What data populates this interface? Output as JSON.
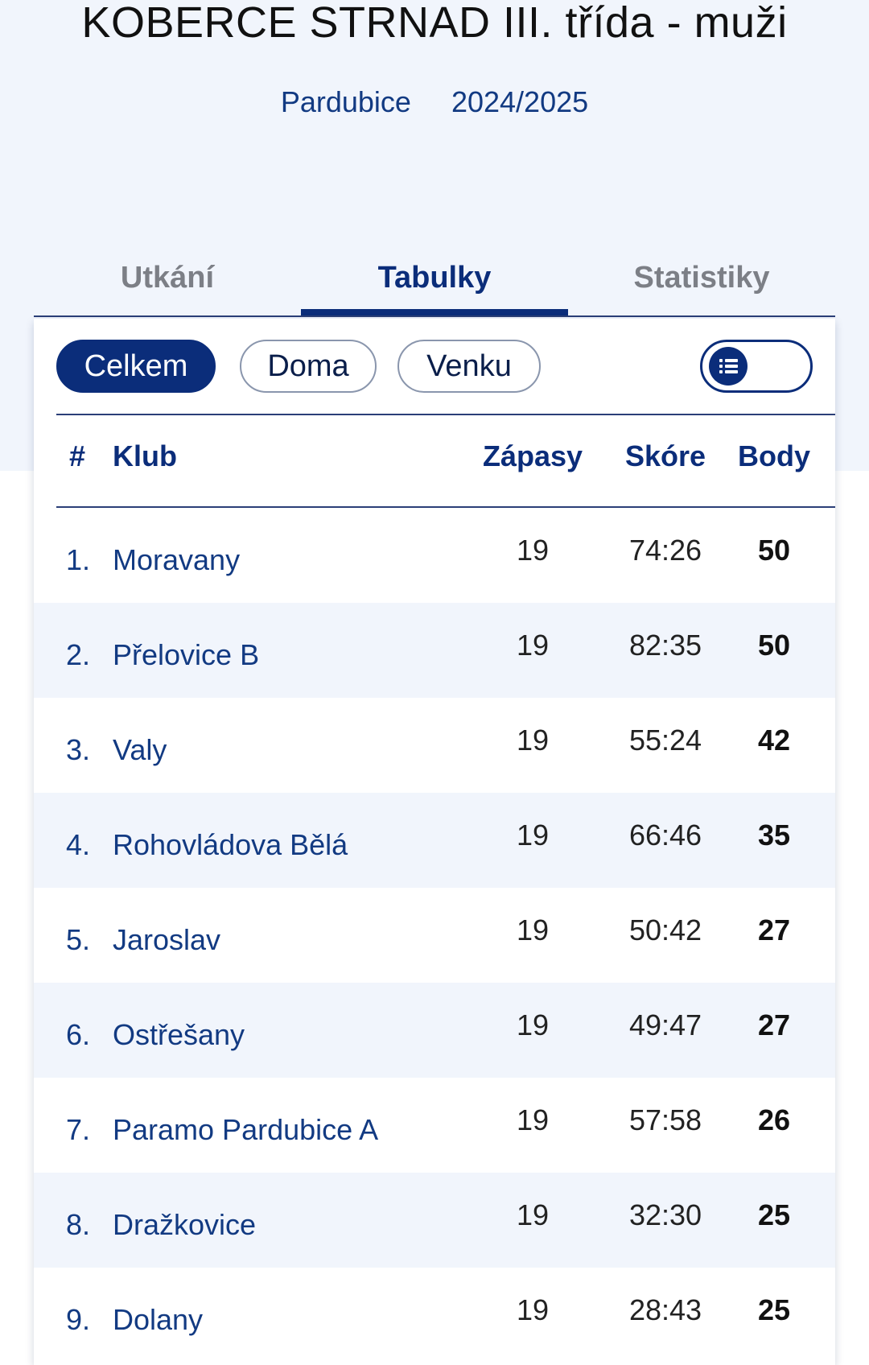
{
  "header": {
    "title": "KOBERCE STRNAD III. třída - muži",
    "region": "Pardubice",
    "season": "2024/2025"
  },
  "tabs": [
    {
      "label": "Utkání",
      "active": false
    },
    {
      "label": "Tabulky",
      "active": true
    },
    {
      "label": "Statistiky",
      "active": false
    }
  ],
  "filters": {
    "overall": "Celkem",
    "home": "Doma",
    "away": "Venku",
    "selected": "Celkem",
    "toggle_icon": "list-icon"
  },
  "table": {
    "columns": {
      "rank": "#",
      "club": "Klub",
      "matches": "Zápasy",
      "score": "Skóre",
      "points": "Body"
    },
    "rows": [
      {
        "rank": "1.",
        "club": "Moravany",
        "matches": "19",
        "score": "74:26",
        "points": "50"
      },
      {
        "rank": "2.",
        "club": "Přelovice B",
        "matches": "19",
        "score": "82:35",
        "points": "50"
      },
      {
        "rank": "3.",
        "club": "Valy",
        "matches": "19",
        "score": "55:24",
        "points": "42"
      },
      {
        "rank": "4.",
        "club": "Rohovládova Bělá",
        "matches": "19",
        "score": "66:46",
        "points": "35"
      },
      {
        "rank": "5.",
        "club": "Jaroslav",
        "matches": "19",
        "score": "50:42",
        "points": "27"
      },
      {
        "rank": "6.",
        "club": "Ostřešany",
        "matches": "19",
        "score": "49:47",
        "points": "27"
      },
      {
        "rank": "7.",
        "club": "Paramo Pardubice A",
        "matches": "19",
        "score": "57:58",
        "points": "26"
      },
      {
        "rank": "8.",
        "club": "Dražkovice",
        "matches": "19",
        "score": "32:30",
        "points": "25"
      },
      {
        "rank": "9.",
        "club": "Dolany",
        "matches": "19",
        "score": "28:43",
        "points": "25"
      }
    ]
  }
}
